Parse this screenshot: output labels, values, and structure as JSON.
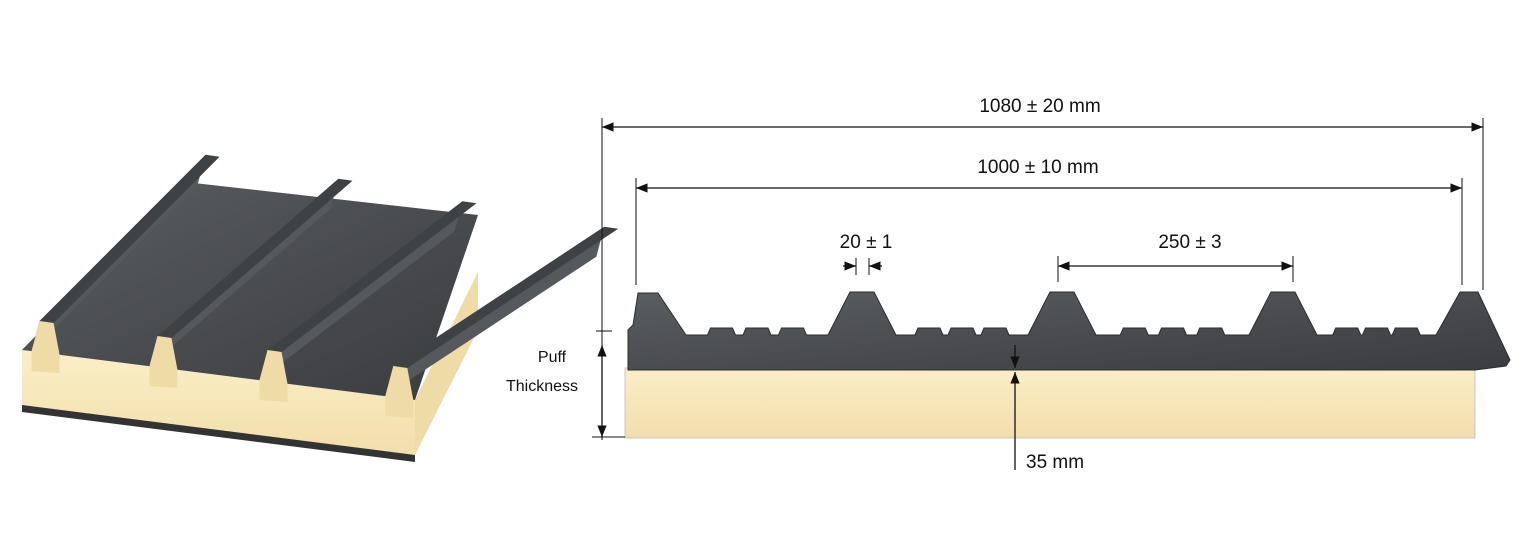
{
  "dimensions": {
    "overall_width": "1080 ± 20 mm",
    "cover_width": "1000 ± 10 mm",
    "rib_width": "20 ± 1",
    "rib_pitch": "250 ± 3",
    "puff_thickness": [
      "Puff",
      "Thickness"
    ],
    "core_depth": "35 mm"
  }
}
